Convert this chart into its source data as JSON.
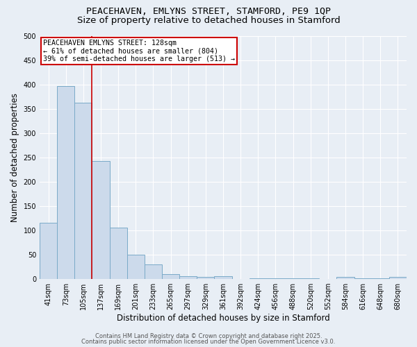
{
  "title": "PEACEHAVEN, EMLYNS STREET, STAMFORD, PE9 1QP",
  "subtitle": "Size of property relative to detached houses in Stamford",
  "xlabel": "Distribution of detached houses by size in Stamford",
  "ylabel": "Number of detached properties",
  "categories": [
    "41sqm",
    "73sqm",
    "105sqm",
    "137sqm",
    "169sqm",
    "201sqm",
    "233sqm",
    "265sqm",
    "297sqm",
    "329sqm",
    "361sqm",
    "392sqm",
    "424sqm",
    "456sqm",
    "488sqm",
    "520sqm",
    "552sqm",
    "584sqm",
    "616sqm",
    "648sqm",
    "680sqm"
  ],
  "values": [
    115,
    397,
    362,
    243,
    106,
    50,
    30,
    10,
    6,
    5,
    6,
    0,
    2,
    2,
    1,
    1,
    0,
    4,
    1,
    1,
    4
  ],
  "bar_color": "#ccdaeb",
  "bar_edge_color": "#7aaac8",
  "bar_edge_width": 0.7,
  "red_line_x": 2.5,
  "annotation_text": "PEACEHAVEN EMLYNS STREET: 128sqm\n← 61% of detached houses are smaller (804)\n39% of semi-detached houses are larger (513) →",
  "annotation_box_facecolor": "#ffffff",
  "annotation_edge_color": "#cc0000",
  "ylim": [
    0,
    500
  ],
  "yticks": [
    0,
    50,
    100,
    150,
    200,
    250,
    300,
    350,
    400,
    450,
    500
  ],
  "footer1": "Contains HM Land Registry data © Crown copyright and database right 2025.",
  "footer2": "Contains public sector information licensed under the Open Government Licence v3.0.",
  "background_color": "#e8eef5",
  "grid_color": "#ffffff",
  "title_fontsize": 9.5,
  "subtitle_fontsize": 9.5,
  "tick_fontsize": 7,
  "ylabel_fontsize": 8.5,
  "xlabel_fontsize": 8.5,
  "footer_fontsize": 6,
  "footer_color": "#555555"
}
